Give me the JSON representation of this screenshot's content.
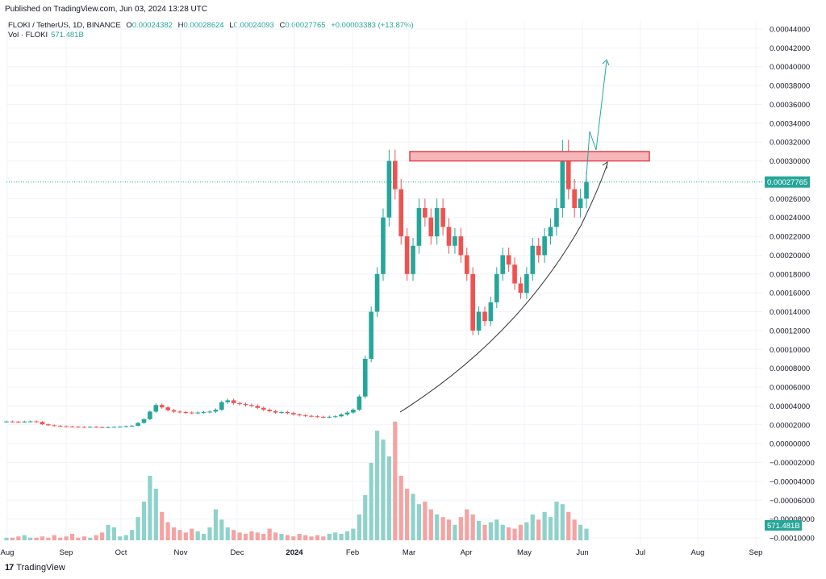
{
  "header": {
    "published": "Published on TradingView.com, Jun 03, 2024 13:28 UTC"
  },
  "legend": {
    "symbol": "FLOKI / TetherUS, 1D, BINANCE",
    "o_label": "O",
    "o_value": "0.00024382",
    "h_label": "H",
    "h_value": "0.00028624",
    "l_label": "L",
    "l_value": "0.00024093",
    "c_label": "C",
    "c_value": "0.00027765",
    "change": "+0.00003383 (+13.87%)",
    "vol_label": "Vol · FLOKI",
    "vol_value": "571.481B"
  },
  "footer": {
    "brand": "TradingView",
    "brand_mark": "17"
  },
  "colors": {
    "up": "#26a69a",
    "down": "#ef5350",
    "zone_fill": "#f5b7b9",
    "zone_stroke": "#e53945",
    "curve": "#333333",
    "projection": "#26a69a"
  },
  "chart_data": {
    "type": "candlestick",
    "ylim": [
      -0.0001,
      0.00044
    ],
    "y_ticks": [
      "0.00044000",
      "0.00042000",
      "0.00040000",
      "0.00038000",
      "0.00036000",
      "0.00034000",
      "0.00032000",
      "0.00030000",
      "0.00026000",
      "0.00024000",
      "0.00022000",
      "0.00020000",
      "0.00018000",
      "0.00016000",
      "0.00014000",
      "0.00012000",
      "0.00010000",
      "0.00008000",
      "0.00006000",
      "0.00004000",
      "0.00002000",
      "0.00000000",
      "−0.00002000",
      "−0.00004000",
      "−0.00006000",
      "−0.00008000",
      "−0.00010000"
    ],
    "y_tick_values": [
      0.00044,
      0.00042,
      0.0004,
      0.00038,
      0.00036,
      0.00034,
      0.00032,
      0.0003,
      0.00026,
      0.00024,
      0.00022,
      0.0002,
      0.00018,
      0.00016,
      0.00014,
      0.00012,
      0.0001,
      8e-05,
      6e-05,
      4e-05,
      2e-05,
      0,
      -2e-05,
      -4e-05,
      -6e-05,
      -8e-05,
      -0.0001
    ],
    "x_ticks": [
      "Aug",
      "Sep",
      "Oct",
      "Nov",
      "Dec",
      "2024",
      "Feb",
      "Mar",
      "Apr",
      "May",
      "Jun",
      "Jul",
      "Aug",
      "Sep"
    ],
    "last_price": "0.00027765",
    "last_price_value": 0.00027765,
    "volume_label": "571.481B",
    "resistance_zone": [
      0.0003,
      0.00031
    ],
    "price_path": [
      2.35e-05,
      2.33e-05,
      2.31e-05,
      2.34e-05,
      2.36e-05,
      2.3e-05,
      2.05e-05,
      1.95e-05,
      1.9e-05,
      1.85e-05,
      1.82e-05,
      1.8e-05,
      1.78e-05,
      1.77e-05,
      1.79e-05,
      1.76e-05,
      1.74e-05,
      1.75e-05,
      1.78e-05,
      1.8e-05,
      1.85e-05,
      1.9e-05,
      2.2e-05,
      2.6e-05,
      3.4e-05,
      4.1e-05,
      3.85e-05,
      3.55e-05,
      3.4e-05,
      3.35e-05,
      3.3e-05,
      3.25e-05,
      3.3e-05,
      3.35e-05,
      3.4e-05,
      3.6e-05,
      4.4e-05,
      4.6e-05,
      4.3e-05,
      4.2e-05,
      4.1e-05,
      4e-05,
      3.8e-05,
      3.6e-05,
      3.45e-05,
      3.3e-05,
      3.35e-05,
      3.25e-05,
      3.1e-05,
      3e-05,
      2.95e-05,
      2.9e-05,
      2.85e-05,
      2.8e-05,
      2.85e-05,
      2.9e-05,
      3.1e-05,
      3.3e-05,
      3.6e-05,
      5e-05,
      9e-05,
      0.00014,
      0.00018,
      0.00024,
      0.0003,
      0.00027,
      0.00022,
      0.00018,
      0.00021,
      0.00025,
      0.00024,
      0.00022,
      0.00025,
      0.00023,
      0.00021,
      0.00022,
      0.0002,
      0.00018,
      0.00012,
      0.00014,
      0.00013,
      0.00015,
      0.00018,
      0.0002,
      0.00019,
      0.00017,
      0.00016,
      0.00018,
      0.00021,
      0.0002,
      0.00022,
      0.00023,
      0.00025,
      0.00031,
      0.00027,
      0.00025,
      0.00026,
      0.00027765
    ],
    "volume_path": [
      2,
      2,
      3,
      4,
      2,
      2,
      3,
      2,
      4,
      2,
      3,
      5,
      2,
      3,
      2,
      4,
      6,
      12,
      10,
      3,
      4,
      8,
      18,
      30,
      50,
      40,
      22,
      14,
      10,
      8,
      6,
      9,
      7,
      5,
      10,
      24,
      16,
      10,
      8,
      6,
      5,
      7,
      6,
      5,
      9,
      6,
      5,
      4,
      3,
      5,
      4,
      3,
      4,
      3,
      5,
      6,
      5,
      7,
      9,
      20,
      35,
      60,
      85,
      78,
      65,
      92,
      50,
      40,
      36,
      28,
      30,
      24,
      20,
      18,
      16,
      12,
      18,
      24,
      20,
      15,
      12,
      14,
      16,
      12,
      10,
      9,
      12,
      14,
      20,
      16,
      22,
      18,
      30,
      28,
      22,
      16,
      12,
      9
    ]
  }
}
